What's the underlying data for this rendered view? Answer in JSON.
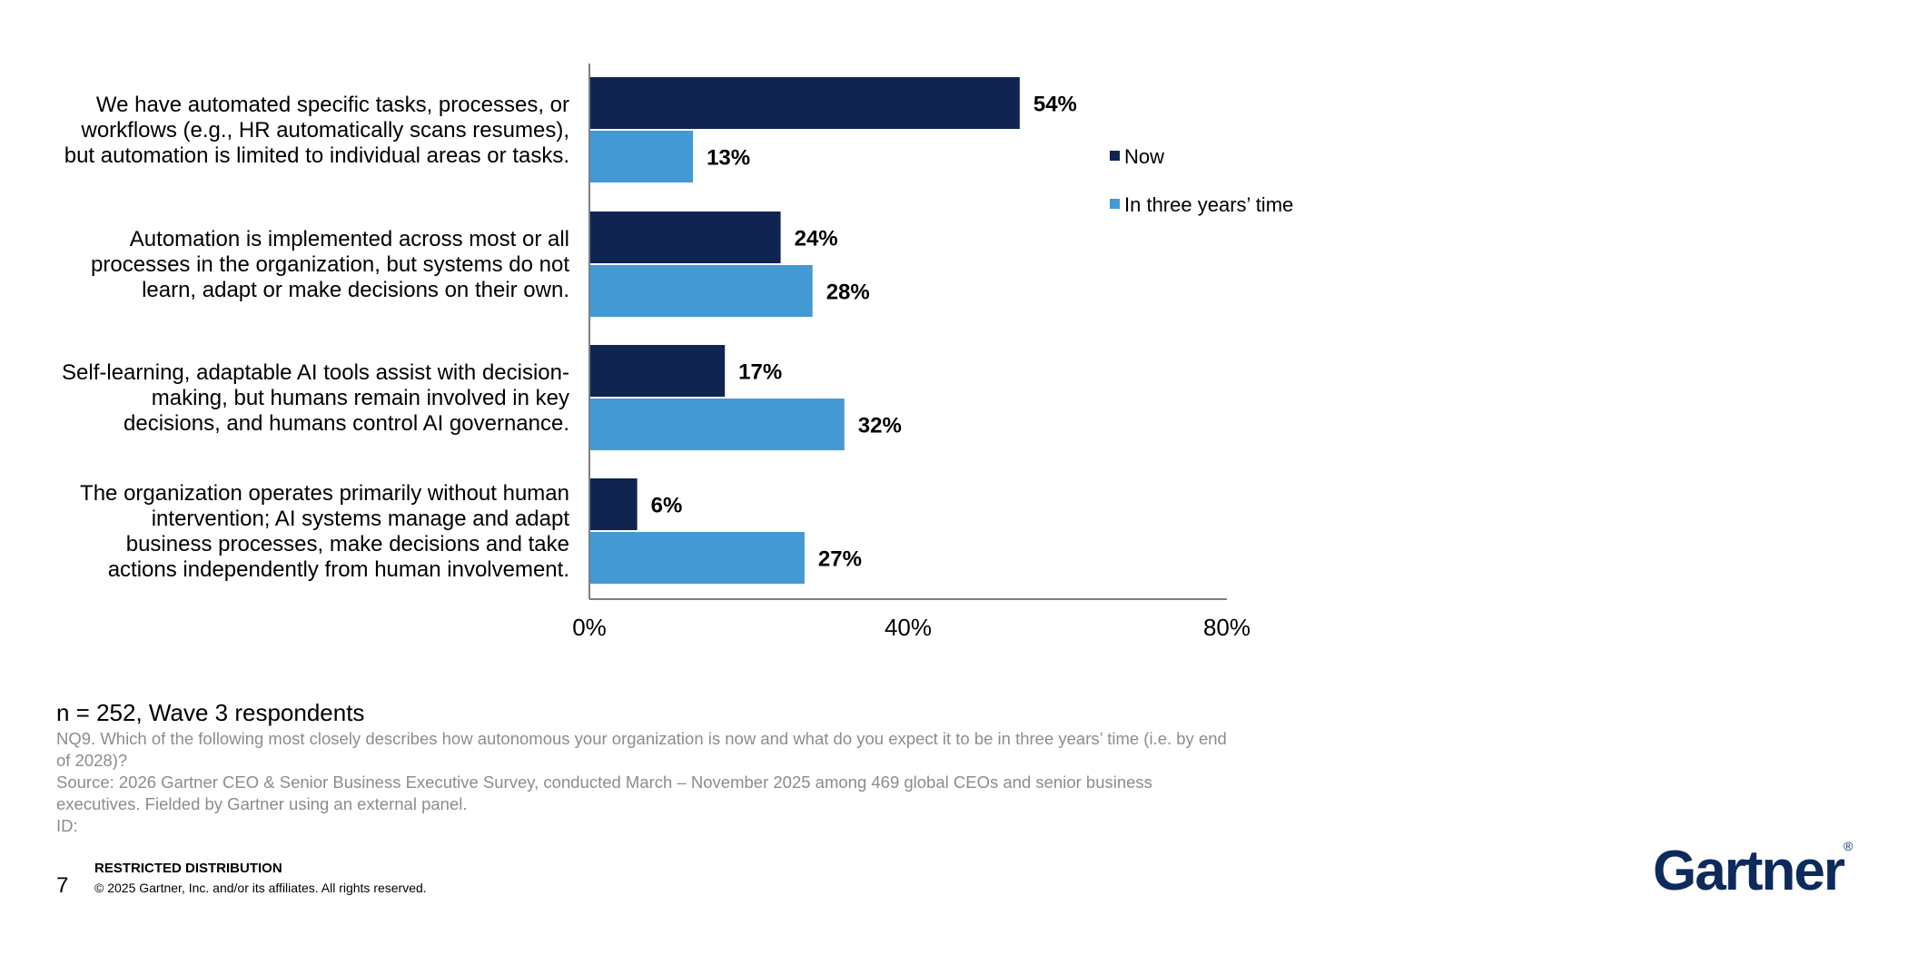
{
  "chart_data": {
    "type": "bar",
    "orientation": "horizontal",
    "categories": [
      [
        "We have automated specific tasks, processes, or",
        "workflows (e.g., HR automatically scans resumes),",
        "but automation is limited to individual areas or tasks."
      ],
      [
        "Automation is implemented across most or all",
        "processes in the organization, but systems do not",
        "learn, adapt or make decisions on their own."
      ],
      [
        "Self-learning, adaptable AI tools assist with decision-",
        "making, but humans remain involved in key",
        "decisions, and humans control AI governance."
      ],
      [
        "The organization operates primarily without human",
        "intervention; AI systems manage and adapt",
        "business processes, make decisions and take",
        "actions independently from human involvement."
      ]
    ],
    "series": [
      {
        "name": "Now",
        "values": [
          54,
          24,
          17,
          6
        ],
        "labels": [
          "54%",
          "24%",
          "17%",
          "6%"
        ],
        "color": "#0f2451"
      },
      {
        "name": "In three years’ time",
        "values": [
          13,
          28,
          32,
          27
        ],
        "labels": [
          "13%",
          "28%",
          "32%",
          "27%"
        ],
        "color": "#4399d4"
      }
    ],
    "xlim": [
      0,
      80
    ],
    "xticks": [
      {
        "value": 0,
        "label": "0%"
      },
      {
        "value": 40,
        "label": "40%"
      },
      {
        "value": 80,
        "label": "80%"
      }
    ],
    "legend_position": "right",
    "grid": false
  },
  "notes": {
    "sample": "n = 252, Wave 3 respondents",
    "question": "NQ9. Which of the following most closely describes how autonomous your organization is now and what do you expect it to be in three years’ time (i.e. by end of 2028)?",
    "source": "Source: 2026 Gartner CEO & Senior Business Executive Survey, conducted March – November 2025 among 469 global CEOs and senior business executives. Fielded by Gartner using an external panel.",
    "id": "ID:"
  },
  "footer": {
    "restricted": "RESTRICTED DISTRIBUTION",
    "copyright": "© 2025 Gartner, Inc. and/or its affiliates. All rights reserved.",
    "page_number": "7"
  },
  "logo": {
    "text": "Gartner",
    "mark": "®"
  }
}
